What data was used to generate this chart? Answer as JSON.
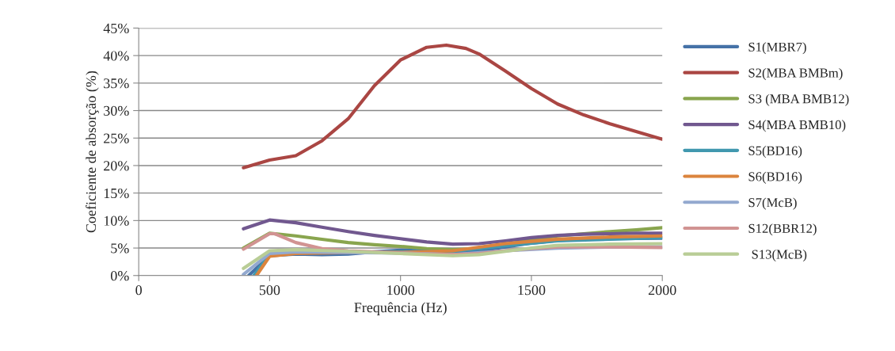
{
  "chart_data": {
    "type": "line",
    "xlabel": "Frequência (Hz)",
    "ylabel": "Coeficiente de absorção (%)",
    "xlim": [
      0,
      2000
    ],
    "xticks": [
      0,
      500,
      1000,
      1500,
      2000
    ],
    "ylim": [
      0,
      45
    ],
    "yticks": [
      {
        "value": 0,
        "label": "0%"
      },
      {
        "value": 5,
        "label": "5%"
      },
      {
        "value": 10,
        "label": "10%"
      },
      {
        "value": 15,
        "label": "15%"
      },
      {
        "value": 20,
        "label": "20%"
      },
      {
        "value": 25,
        "label": "25%"
      },
      {
        "value": 30,
        "label": "30%"
      },
      {
        "value": 35,
        "label": "35%"
      },
      {
        "value": 40,
        "label": "40%"
      },
      {
        "value": 45,
        "label": "45%"
      }
    ],
    "grid": "y",
    "legend": "right",
    "marker": "none",
    "line_style": "solid",
    "series": [
      {
        "name": "S1(MBR7)",
        "color": "#4572a7",
        "x": [
          420,
          500,
          600,
          700,
          800,
          900,
          1000,
          1100,
          1200,
          1300,
          1400,
          1500,
          1600,
          1700,
          1800,
          2000
        ],
        "values": [
          0,
          3.6,
          3.9,
          3.8,
          3.9,
          4.3,
          4.6,
          4.5,
          4.4,
          4.5,
          5.2,
          5.9,
          6.4,
          6.6,
          6.7,
          6.8
        ]
      },
      {
        "name": "S2(MBA BMBm)",
        "color": "#aa4643",
        "x": [
          400,
          500,
          600,
          700,
          800,
          900,
          1000,
          1100,
          1175,
          1250,
          1300,
          1400,
          1500,
          1600,
          1700,
          1800,
          1900,
          2000
        ],
        "values": [
          19.6,
          21,
          21.8,
          24.5,
          28.5,
          34.5,
          39.2,
          41.5,
          41.9,
          41.3,
          40.3,
          37.2,
          34,
          31.2,
          29.2,
          27.6,
          26.2,
          24.8
        ]
      },
      {
        "name": "S3 (MBA BMB12)",
        "color": "#89a54e",
        "x": [
          400,
          500,
          600,
          700,
          800,
          900,
          1000,
          1100,
          1200,
          1300,
          1400,
          1500,
          1600,
          1700,
          1800,
          1900,
          2000
        ],
        "values": [
          5.0,
          7.7,
          7.2,
          6.6,
          6.0,
          5.6,
          5.3,
          4.9,
          4.7,
          4.9,
          5.6,
          6.5,
          7.2,
          7.6,
          8.0,
          8.3,
          8.7
        ]
      },
      {
        "name": "S4(MBA BMB10)",
        "color": "#71588f",
        "x": [
          400,
          500,
          600,
          700,
          800,
          900,
          1000,
          1100,
          1200,
          1300,
          1400,
          1500,
          1600,
          1700,
          1800,
          1900,
          2000
        ],
        "values": [
          8.5,
          10.1,
          9.6,
          8.8,
          8.0,
          7.3,
          6.7,
          6.1,
          5.7,
          5.8,
          6.3,
          6.9,
          7.3,
          7.5,
          7.6,
          7.7,
          7.7
        ]
      },
      {
        "name": "S5(BD16)",
        "color": "#4198af",
        "x": [
          440,
          500,
          600,
          800,
          1000,
          1200,
          1400,
          1600,
          1800,
          2000
        ],
        "values": [
          0,
          3.9,
          4.2,
          4.2,
          4.3,
          4.4,
          5.4,
          6.3,
          6.6,
          6.9
        ]
      },
      {
        "name": "S6(BD16)",
        "color": "#db843d",
        "x": [
          450,
          500,
          600,
          800,
          1000,
          1200,
          1400,
          1600,
          1800,
          2000
        ],
        "values": [
          0,
          3.5,
          4.0,
          4.2,
          4.2,
          4.5,
          5.8,
          6.6,
          7.0,
          7.2
        ]
      },
      {
        "name": "S7(McB)",
        "color": "#93a9cf",
        "x": [
          400,
          500,
          600,
          800,
          1000,
          1200,
          1400,
          1600,
          1800,
          2000
        ],
        "values": [
          0.2,
          4.0,
          4.3,
          4.2,
          4.1,
          3.8,
          4.5,
          5.0,
          5.2,
          5.2
        ]
      },
      {
        "name": "S12(BBR12)",
        "color": "#d19392",
        "x": [
          400,
          500,
          520,
          600,
          700,
          800,
          900,
          1000,
          1100,
          1200,
          1300,
          1400,
          1500,
          1600,
          1800,
          2000
        ],
        "values": [
          4.8,
          7.6,
          7.6,
          6.0,
          4.9,
          4.5,
          4.3,
          4.1,
          3.9,
          3.8,
          4.0,
          4.5,
          4.9,
          5.2,
          5.2,
          5.1
        ]
      },
      {
        "name": " S13(McB)",
        "color": "#b9cd96",
        "x": [
          400,
          500,
          600,
          800,
          1000,
          1200,
          1300,
          1400,
          1500,
          1600,
          1800,
          2000
        ],
        "values": [
          1.3,
          4.5,
          4.7,
          4.4,
          4.0,
          3.6,
          3.8,
          4.4,
          5.0,
          5.5,
          5.7,
          5.8
        ]
      }
    ]
  }
}
